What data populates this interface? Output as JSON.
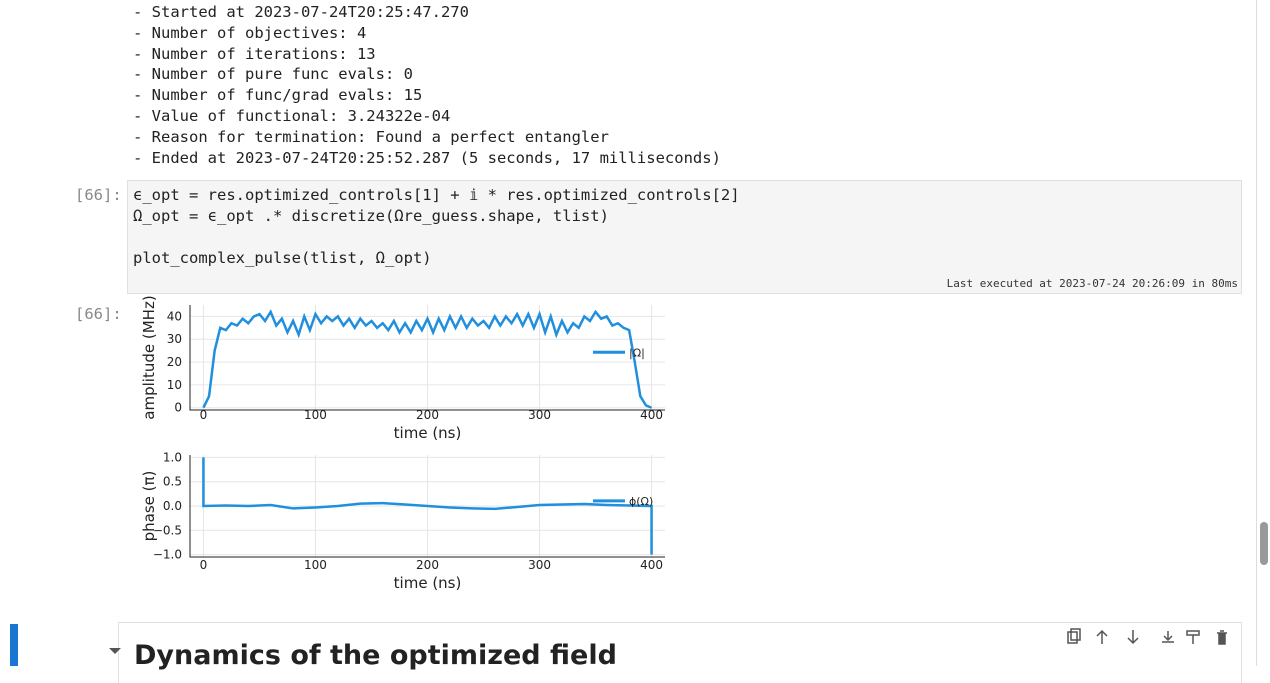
{
  "output_lines": [
    "- Started at 2023-07-24T20:25:47.270",
    "- Number of objectives: 4",
    "- Number of iterations: 13",
    "- Number of pure func evals: 0",
    "- Number of func/grad evals: 15",
    "- Value of functional: 3.24322e-04",
    "- Reason for termination: Found a perfect entangler",
    "- Ended at 2023-07-24T20:25:52.287 (5 seconds, 17 milliseconds)"
  ],
  "cell": {
    "prompt": "[66]:",
    "code": [
      "ϵ_opt = res.optimized_controls[1] + 𝕚 * res.optimized_controls[2]",
      "Ω_opt = ϵ_opt .* discretize(Ωre_guess.shape, tlist)",
      "plot_complex_pulse(tlist, Ω_opt)"
    ],
    "execution_info": "Last executed at 2023-07-24 20:26:09 in 80ms"
  },
  "output_prompt": "[66]:",
  "chart_data": [
    {
      "type": "line",
      "xlabel": "time (ns)",
      "ylabel": "amplitude (MHz)",
      "xlim": [
        -12,
        412
      ],
      "ylim": [
        -1,
        45
      ],
      "xticks": [
        0,
        100,
        200,
        300,
        400
      ],
      "yticks": [
        0,
        10,
        20,
        30,
        40
      ],
      "grid": true,
      "legend": "right",
      "x": [
        0,
        5,
        10,
        15,
        20,
        25,
        30,
        35,
        40,
        45,
        50,
        55,
        60,
        65,
        70,
        75,
        80,
        85,
        90,
        95,
        100,
        105,
        110,
        115,
        120,
        125,
        130,
        135,
        140,
        145,
        150,
        155,
        160,
        165,
        170,
        175,
        180,
        185,
        190,
        195,
        200,
        205,
        210,
        215,
        220,
        225,
        230,
        235,
        240,
        245,
        250,
        255,
        260,
        265,
        270,
        275,
        280,
        285,
        290,
        295,
        300,
        305,
        310,
        315,
        320,
        325,
        330,
        335,
        340,
        345,
        350,
        355,
        360,
        365,
        370,
        375,
        380,
        385,
        390,
        395,
        400
      ],
      "series": [
        {
          "name": "|Ω|",
          "color": "#1f8fde",
          "values": [
            0,
            5,
            25,
            35,
            34,
            37,
            36,
            39,
            37,
            40,
            41,
            38,
            42,
            36,
            39,
            33,
            38,
            32,
            40,
            34,
            41,
            37,
            40,
            38,
            40,
            36,
            39,
            35,
            39,
            36,
            38,
            35,
            37,
            34,
            38,
            33,
            37,
            33,
            38,
            34,
            39,
            33,
            39,
            34,
            40,
            35,
            40,
            35,
            39,
            36,
            38,
            35,
            40,
            36,
            40,
            37,
            41,
            36,
            41,
            35,
            41,
            33,
            40,
            32,
            38,
            33,
            37,
            35,
            40,
            38,
            42,
            39,
            40,
            36,
            37,
            35,
            34,
            20,
            5,
            1,
            0
          ]
        }
      ]
    },
    {
      "type": "line",
      "xlabel": "time (ns)",
      "ylabel": "phase (π)",
      "xlim": [
        -12,
        412
      ],
      "ylim": [
        -1.05,
        1.05
      ],
      "xticks": [
        0,
        100,
        200,
        300,
        400
      ],
      "yticks": [
        {
          "value": 1,
          "label": "1.0"
        },
        {
          "value": 0.5,
          "label": "0.5"
        },
        {
          "value": 0,
          "label": "0.0"
        },
        {
          "value": -0.5,
          "label": "−0.5"
        },
        {
          "value": -1,
          "label": "−1.0"
        }
      ],
      "grid": true,
      "legend": "right",
      "x": [
        0,
        0,
        20,
        40,
        60,
        80,
        100,
        120,
        140,
        160,
        180,
        200,
        220,
        240,
        260,
        280,
        300,
        320,
        340,
        360,
        380,
        398,
        400,
        400
      ],
      "series": [
        {
          "name": "ϕ(Ω)",
          "color": "#1f8fde",
          "values": [
            1,
            0,
            0.01,
            0,
            0.02,
            -0.05,
            -0.03,
            0,
            0.05,
            0.06,
            0.03,
            0,
            -0.03,
            -0.05,
            -0.06,
            -0.02,
            0.02,
            0.03,
            0.04,
            0.02,
            0.01,
            0,
            0,
            -1
          ]
        }
      ]
    }
  ],
  "heading": "Dynamics of the optimized field"
}
